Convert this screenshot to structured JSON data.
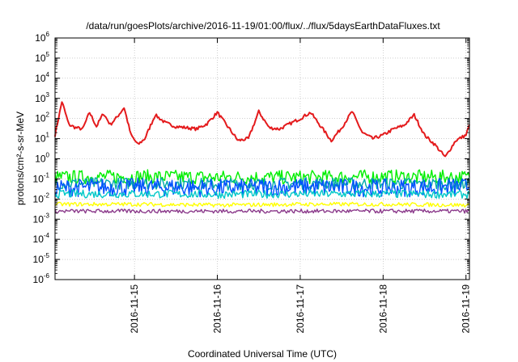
{
  "chart_data": {
    "type": "line",
    "title": "/data/run/goesPlots/archive/2016-11-19/01:00/flux/../flux/5daysEarthDataFluxes.txt",
    "xlabel": "Coordinated Universal Time (UTC)",
    "ylabel": "protons/cm²-s-sr-MeV",
    "y_scale": "log",
    "ylim": [
      1e-06,
      1000000.0
    ],
    "y_ticks": [
      {
        "base": "10",
        "exp": "-6",
        "value": 1e-06
      },
      {
        "base": "10",
        "exp": "-5",
        "value": 1e-05
      },
      {
        "base": "10",
        "exp": "-4",
        "value": 0.0001
      },
      {
        "base": "10",
        "exp": "-3",
        "value": 0.001
      },
      {
        "base": "10",
        "exp": "-2",
        "value": 0.01
      },
      {
        "base": "10",
        "exp": "-1",
        "value": 0.1
      },
      {
        "base": "10",
        "exp": "0",
        "value": 1
      },
      {
        "base": "10",
        "exp": "1",
        "value": 10
      },
      {
        "base": "10",
        "exp": "2",
        "value": 100
      },
      {
        "base": "10",
        "exp": "3",
        "value": 1000
      },
      {
        "base": "10",
        "exp": "4",
        "value": 10000
      },
      {
        "base": "10",
        "exp": "5",
        "value": 100000
      },
      {
        "base": "10",
        "exp": "6",
        "value": 1000000
      }
    ],
    "xlim": [
      "2016-11-14 01:00",
      "2016-11-19 01:00"
    ],
    "x_ticks": [
      "2016-11-15",
      "2016-11-16",
      "2016-11-17",
      "2016-11-18",
      "2016-11-19"
    ],
    "grid": true,
    "legend": "none",
    "series": [
      {
        "color": "#e41a1c",
        "x": [
          "2016-11-14 01:00",
          "2016-11-14 03:00",
          "2016-11-14 05:00",
          "2016-11-14 07:00",
          "2016-11-14 09:00",
          "2016-11-14 11:00",
          "2016-11-14 13:00",
          "2016-11-14 15:00",
          "2016-11-14 17:00",
          "2016-11-14 19:00",
          "2016-11-14 21:00",
          "2016-11-14 23:00",
          "2016-11-15 01:00",
          "2016-11-15 03:00",
          "2016-11-15 06:00",
          "2016-11-15 09:00",
          "2016-11-15 12:00",
          "2016-11-15 15:00",
          "2016-11-15 18:00",
          "2016-11-15 21:00",
          "2016-11-16 00:00",
          "2016-11-16 03:00",
          "2016-11-16 06:00",
          "2016-11-16 09:00",
          "2016-11-16 12:00",
          "2016-11-16 15:00",
          "2016-11-16 18:00",
          "2016-11-16 21:00",
          "2016-11-17 00:00",
          "2016-11-17 03:00",
          "2016-11-17 06:00",
          "2016-11-17 09:00",
          "2016-11-17 12:00",
          "2016-11-17 15:00",
          "2016-11-17 18:00",
          "2016-11-17 21:00",
          "2016-11-18 00:00",
          "2016-11-18 03:00",
          "2016-11-18 06:00",
          "2016-11-18 09:00",
          "2016-11-18 12:00",
          "2016-11-18 15:00",
          "2016-11-18 18:00",
          "2016-11-18 21:00",
          "2016-11-19 00:00",
          "2016-11-19 01:00"
        ],
        "values": [
          15,
          700,
          50,
          35,
          30,
          200,
          40,
          180,
          50,
          120,
          350,
          15,
          5,
          10,
          150,
          60,
          40,
          35,
          30,
          55,
          200,
          40,
          8,
          10,
          220,
          35,
          30,
          55,
          100,
          200,
          40,
          8,
          35,
          220,
          20,
          10,
          15,
          30,
          45,
          150,
          15,
          5,
          1.2,
          8,
          15,
          50
        ]
      },
      {
        "color": "#00ee00",
        "x": [
          "2016-11-14 01:00",
          "2016-11-15 01:00",
          "2016-11-16 01:00",
          "2016-11-17 01:00",
          "2016-11-18 01:00",
          "2016-11-19 01:00"
        ],
        "values": [
          0.12,
          0.13,
          0.12,
          0.12,
          0.13,
          0.12
        ]
      },
      {
        "color": "#00aaaa",
        "x": [
          "2016-11-14 01:00",
          "2016-11-15 01:00",
          "2016-11-16 01:00",
          "2016-11-17 01:00",
          "2016-11-18 01:00",
          "2016-11-19 01:00"
        ],
        "values": [
          0.06,
          0.06,
          0.055,
          0.06,
          0.06,
          0.055
        ]
      },
      {
        "color": "#0050ff",
        "x": [
          "2016-11-14 01:00",
          "2016-11-15 01:00",
          "2016-11-16 01:00",
          "2016-11-17 01:00",
          "2016-11-18 01:00",
          "2016-11-19 01:00"
        ],
        "values": [
          0.035,
          0.04,
          0.035,
          0.04,
          0.035,
          0.04
        ]
      },
      {
        "color": "#00c8c8",
        "x": [
          "2016-11-14 01:00",
          "2016-11-15 01:00",
          "2016-11-16 01:00",
          "2016-11-17 01:00",
          "2016-11-18 01:00",
          "2016-11-19 01:00"
        ],
        "values": [
          0.018,
          0.018,
          0.017,
          0.018,
          0.018,
          0.017
        ]
      },
      {
        "color": "#ffff00",
        "x": [
          "2016-11-14 01:00",
          "2016-11-15 01:00",
          "2016-11-16 01:00",
          "2016-11-17 01:00",
          "2016-11-18 01:00",
          "2016-11-19 01:00"
        ],
        "values": [
          0.0055,
          0.0055,
          0.005,
          0.0055,
          0.0055,
          0.005
        ]
      },
      {
        "color": "#8b3a8b",
        "x": [
          "2016-11-14 01:00",
          "2016-11-15 01:00",
          "2016-11-16 01:00",
          "2016-11-17 01:00",
          "2016-11-18 01:00",
          "2016-11-19 01:00"
        ],
        "values": [
          0.0025,
          0.0025,
          0.0025,
          0.0025,
          0.0025,
          0.0025
        ]
      }
    ]
  }
}
